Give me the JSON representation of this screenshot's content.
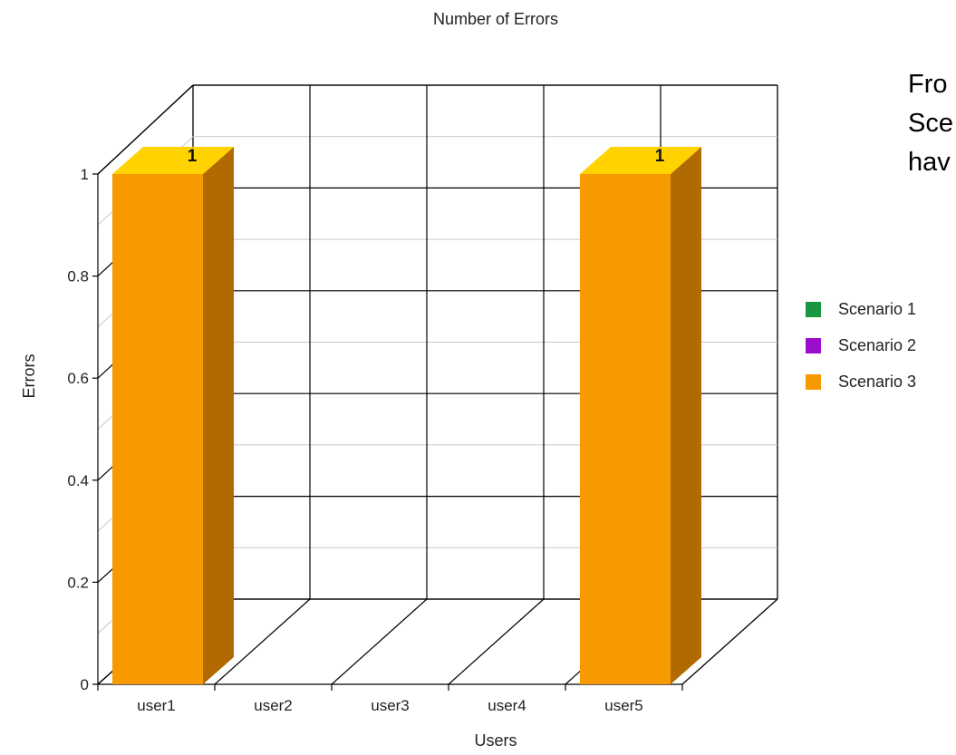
{
  "chart_data": {
    "type": "bar",
    "three_d": true,
    "title": "Number of Errors",
    "xlabel": "Users",
    "ylabel": "Errors",
    "categories": [
      "user1",
      "user2",
      "user3",
      "user4",
      "user5"
    ],
    "ylim": [
      0,
      1
    ],
    "yticks": [
      0,
      0.2,
      0.4,
      0.6,
      0.8,
      1
    ],
    "ytick_labels": [
      "0",
      "0.2",
      "0.4",
      "0.6",
      "0.8",
      "1"
    ],
    "grid": true,
    "legend_position": "right",
    "series": [
      {
        "name": "Scenario 1",
        "color": "#1a9641",
        "values": [
          0,
          0,
          0,
          0,
          0
        ]
      },
      {
        "name": "Scenario 2",
        "color": "#9a0fce",
        "values": [
          0,
          0,
          0,
          0,
          0
        ]
      },
      {
        "name": "Scenario 3",
        "color": "#f79a00",
        "values": [
          1,
          0,
          0,
          0,
          1
        ]
      }
    ],
    "data_labels": [
      "1",
      "",
      "",
      "",
      "1"
    ]
  },
  "slide_text": {
    "lines": [
      "Fro",
      "Sce",
      "hav"
    ]
  }
}
